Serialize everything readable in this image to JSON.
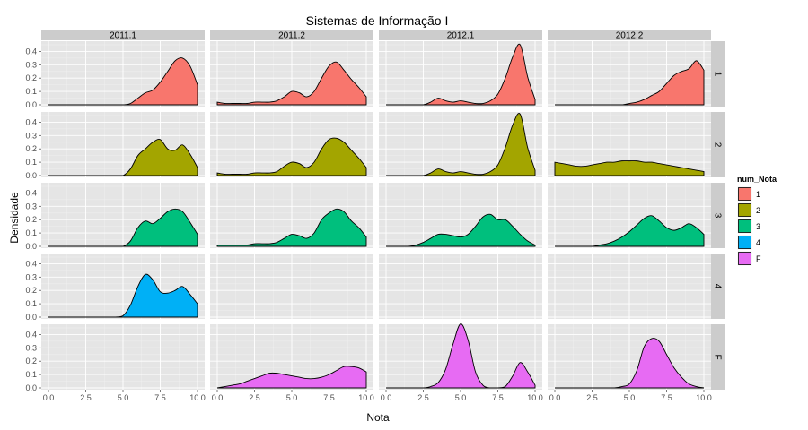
{
  "chart_data": {
    "type": "area",
    "subtype": "faceted-density",
    "title": "Sistemas de Informação I",
    "xlabel": "Nota",
    "ylabel": "Densidade",
    "xlim": [
      0,
      10
    ],
    "ylim": [
      0,
      0.45
    ],
    "x_ticks": [
      "0.0",
      "2.5",
      "5.0",
      "7.5",
      "10.0"
    ],
    "y_ticks": [
      "0.0",
      "0.1",
      "0.2",
      "0.3",
      "0.4"
    ],
    "grid": true,
    "legend": {
      "title": "num_Nota",
      "position": "right",
      "entries": [
        {
          "label": "1",
          "color": "#F8766D"
        },
        {
          "label": "2",
          "color": "#A3A500"
        },
        {
          "label": "3",
          "color": "#00BF7D"
        },
        {
          "label": "4",
          "color": "#00B0F6"
        },
        {
          "label": "F",
          "color": "#E76BF3"
        }
      ]
    },
    "columns": [
      "2011.1",
      "2011.2",
      "2012.1",
      "2012.2"
    ],
    "rows": [
      "1",
      "2",
      "3",
      "4",
      "F"
    ],
    "x": [
      0,
      0.5,
      1,
      1.5,
      2,
      2.5,
      3,
      3.5,
      4,
      4.5,
      5,
      5.5,
      6,
      6.5,
      7,
      7.5,
      8,
      8.5,
      9,
      9.5,
      10
    ],
    "panels": [
      {
        "row": "1",
        "col": "2011.1",
        "y": [
          0,
          0,
          0,
          0,
          0,
          0,
          0,
          0,
          0,
          0,
          0,
          0.01,
          0.05,
          0.09,
          0.11,
          0.17,
          0.25,
          0.33,
          0.35,
          0.29,
          0.15
        ]
      },
      {
        "row": "1",
        "col": "2011.2",
        "y": [
          0.02,
          0.01,
          0.01,
          0.01,
          0.01,
          0.02,
          0.02,
          0.02,
          0.03,
          0.06,
          0.1,
          0.09,
          0.06,
          0.1,
          0.2,
          0.29,
          0.32,
          0.26,
          0.19,
          0.13,
          0.06
        ]
      },
      {
        "row": "1",
        "col": "2012.1",
        "y": [
          0,
          0,
          0,
          0,
          0,
          0,
          0.02,
          0.05,
          0.03,
          0.02,
          0.03,
          0.02,
          0.01,
          0.01,
          0.03,
          0.08,
          0.2,
          0.36,
          0.45,
          0.21,
          0.04
        ]
      },
      {
        "row": "1",
        "col": "2012.2",
        "y": [
          0,
          0,
          0,
          0,
          0,
          0,
          0,
          0,
          0,
          0,
          0.01,
          0.02,
          0.04,
          0.07,
          0.1,
          0.16,
          0.22,
          0.25,
          0.27,
          0.33,
          0.26
        ]
      },
      {
        "row": "2",
        "col": "2011.1",
        "y": [
          0,
          0,
          0,
          0,
          0,
          0,
          0,
          0,
          0,
          0,
          0,
          0.05,
          0.15,
          0.2,
          0.25,
          0.27,
          0.2,
          0.19,
          0.23,
          0.16,
          0.06
        ]
      },
      {
        "row": "2",
        "col": "2011.2",
        "y": [
          0.02,
          0.01,
          0.01,
          0.01,
          0.01,
          0.02,
          0.02,
          0.02,
          0.03,
          0.07,
          0.1,
          0.09,
          0.06,
          0.1,
          0.2,
          0.27,
          0.28,
          0.25,
          0.19,
          0.13,
          0.06
        ]
      },
      {
        "row": "2",
        "col": "2012.1",
        "y": [
          0,
          0,
          0,
          0,
          0,
          0,
          0.02,
          0.05,
          0.03,
          0.02,
          0.03,
          0.02,
          0.01,
          0.01,
          0.03,
          0.08,
          0.21,
          0.38,
          0.46,
          0.21,
          0.04
        ]
      },
      {
        "row": "2",
        "col": "2012.2",
        "y": [
          0.1,
          0.09,
          0.08,
          0.07,
          0.07,
          0.08,
          0.09,
          0.1,
          0.1,
          0.11,
          0.11,
          0.11,
          0.1,
          0.1,
          0.09,
          0.08,
          0.07,
          0.06,
          0.05,
          0.04,
          0.03
        ]
      },
      {
        "row": "3",
        "col": "2011.1",
        "y": [
          0,
          0,
          0,
          0,
          0,
          0,
          0,
          0,
          0,
          0,
          0,
          0.04,
          0.14,
          0.19,
          0.17,
          0.21,
          0.26,
          0.28,
          0.26,
          0.18,
          0.09
        ]
      },
      {
        "row": "3",
        "col": "2011.2",
        "y": [
          0.01,
          0.01,
          0.01,
          0.01,
          0.01,
          0.02,
          0.02,
          0.02,
          0.03,
          0.06,
          0.09,
          0.08,
          0.06,
          0.1,
          0.2,
          0.25,
          0.28,
          0.26,
          0.19,
          0.14,
          0.07
        ]
      },
      {
        "row": "3",
        "col": "2012.1",
        "y": [
          0,
          0,
          0,
          0,
          0.01,
          0.03,
          0.06,
          0.09,
          0.09,
          0.08,
          0.07,
          0.09,
          0.15,
          0.22,
          0.24,
          0.2,
          0.2,
          0.15,
          0.09,
          0.04,
          0.01
        ]
      },
      {
        "row": "3",
        "col": "2012.2",
        "y": [
          0,
          0,
          0,
          0,
          0,
          0,
          0.01,
          0.02,
          0.04,
          0.07,
          0.11,
          0.16,
          0.21,
          0.23,
          0.19,
          0.14,
          0.12,
          0.14,
          0.17,
          0.14,
          0.09
        ]
      },
      {
        "row": "4",
        "col": "2011.1",
        "y": [
          0,
          0,
          0,
          0,
          0,
          0,
          0,
          0,
          0,
          0,
          0.01,
          0.09,
          0.23,
          0.32,
          0.28,
          0.19,
          0.18,
          0.2,
          0.23,
          0.17,
          0.1
        ]
      },
      {
        "row": "F",
        "col": "2011.2",
        "y": [
          0,
          0.01,
          0.02,
          0.03,
          0.05,
          0.07,
          0.09,
          0.11,
          0.11,
          0.1,
          0.09,
          0.08,
          0.07,
          0.07,
          0.08,
          0.1,
          0.13,
          0.16,
          0.16,
          0.15,
          0.12
        ]
      },
      {
        "row": "F",
        "col": "2012.1",
        "y": [
          0,
          0,
          0,
          0,
          0,
          0,
          0.01,
          0.04,
          0.14,
          0.33,
          0.48,
          0.36,
          0.12,
          0.02,
          0,
          0,
          0.01,
          0.09,
          0.19,
          0.12,
          0.02
        ]
      },
      {
        "row": "F",
        "col": "2012.2",
        "y": [
          0,
          0,
          0,
          0,
          0,
          0,
          0,
          0,
          0,
          0.01,
          0.03,
          0.13,
          0.31,
          0.37,
          0.35,
          0.25,
          0.15,
          0.08,
          0.03,
          0.01,
          0
        ]
      }
    ]
  }
}
